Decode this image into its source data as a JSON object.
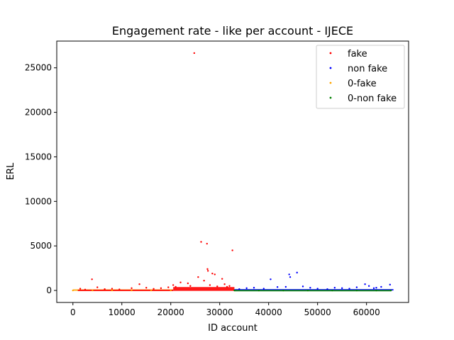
{
  "chart_data": {
    "type": "scatter",
    "title": "Engagement rate - like per account - IJECE",
    "xlabel": "ID account",
    "ylabel": "ERL",
    "xlim": [
      -3300,
      68600
    ],
    "ylim": [
      -1350,
      28000
    ],
    "xticks": [
      0,
      10000,
      20000,
      30000,
      40000,
      50000,
      60000
    ],
    "xtick_labels": [
      "0",
      "10000",
      "20000",
      "30000",
      "40000",
      "50000",
      "60000"
    ],
    "yticks": [
      0,
      5000,
      10000,
      15000,
      20000,
      25000
    ],
    "ytick_labels": [
      "0",
      "5000",
      "10000",
      "15000",
      "20000",
      "25000"
    ],
    "grid": false,
    "legend_position": "top-right",
    "series": [
      {
        "name": "fake",
        "color": "#ff0000",
        "points": [
          [
            24800,
            26650
          ],
          [
            26200,
            5450
          ],
          [
            27400,
            5250
          ],
          [
            32600,
            4500
          ],
          [
            3900,
            1250
          ],
          [
            27500,
            2400
          ],
          [
            27600,
            2200
          ],
          [
            28500,
            1900
          ],
          [
            29000,
            1800
          ],
          [
            25600,
            1500
          ],
          [
            30500,
            1300
          ],
          [
            22000,
            900
          ],
          [
            23500,
            800
          ],
          [
            26800,
            1100
          ],
          [
            31000,
            700
          ],
          [
            20500,
            600
          ],
          [
            13600,
            700
          ],
          [
            1500,
            200
          ],
          [
            5000,
            350
          ],
          [
            8000,
            200
          ],
          [
            12000,
            250
          ],
          [
            15000,
            300
          ],
          [
            18000,
            250
          ],
          [
            19500,
            350
          ],
          [
            21000,
            400
          ],
          [
            24000,
            500
          ],
          [
            28000,
            600
          ],
          [
            29500,
            450
          ],
          [
            31500,
            400
          ],
          [
            32000,
            500
          ],
          [
            2500,
            100
          ],
          [
            6500,
            150
          ],
          [
            9500,
            120
          ],
          [
            16500,
            180
          ]
        ]
      },
      {
        "name": "non fake",
        "color": "#0000ff",
        "points": [
          [
            45800,
            2000
          ],
          [
            44200,
            1800
          ],
          [
            44400,
            1500
          ],
          [
            40400,
            1250
          ],
          [
            59700,
            700
          ],
          [
            53500,
            300
          ],
          [
            58000,
            350
          ],
          [
            62000,
            300
          ],
          [
            64800,
            650
          ],
          [
            47000,
            450
          ],
          [
            43500,
            400
          ],
          [
            37000,
            300
          ],
          [
            35500,
            250
          ],
          [
            41800,
            380
          ],
          [
            50000,
            200
          ],
          [
            55000,
            250
          ],
          [
            60500,
            500
          ],
          [
            63000,
            400
          ],
          [
            39000,
            200
          ],
          [
            48500,
            300
          ],
          [
            52000,
            150
          ],
          [
            56500,
            200
          ],
          [
            34000,
            150
          ],
          [
            61500,
            250
          ]
        ]
      },
      {
        "name": "0-fake",
        "color": "#ffa500",
        "points": [
          [
            0,
            0
          ],
          [
            4000,
            0
          ],
          [
            8000,
            0
          ],
          [
            12000,
            0
          ],
          [
            16000,
            0
          ],
          [
            20000,
            0
          ]
        ]
      },
      {
        "name": "0-non fake",
        "color": "#008000",
        "points": [
          [
            33000,
            0
          ],
          [
            38000,
            0
          ],
          [
            43000,
            0
          ],
          [
            48000,
            0
          ],
          [
            53000,
            0
          ],
          [
            58000,
            0
          ],
          [
            62000,
            0
          ],
          [
            65000,
            0
          ]
        ]
      }
    ]
  }
}
